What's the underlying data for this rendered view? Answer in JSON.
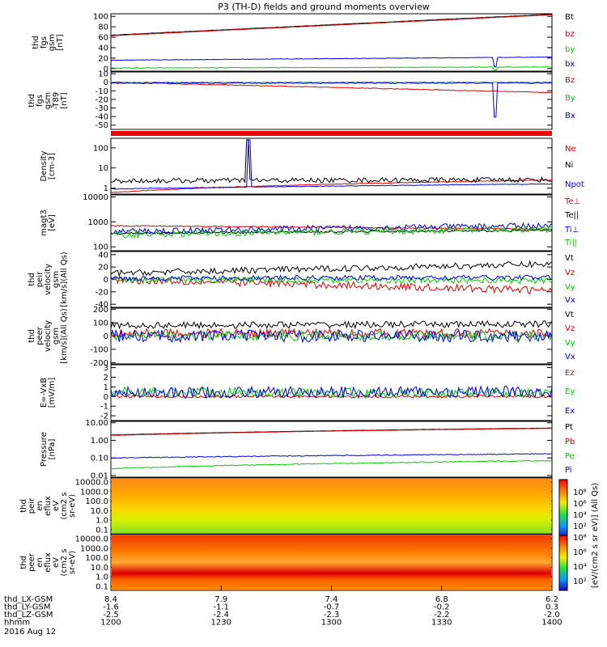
{
  "title": "P3 (TH-D) fields and ground moments overview",
  "date_label": "2016 Aug 12",
  "chart_data": [
    {
      "type": "line",
      "ylabel": [
        "thd",
        "fgs",
        "gsm",
        "[nT]"
      ],
      "yticks": [
        "100",
        "80",
        "60",
        "40",
        "20",
        "0"
      ],
      "ylim": [
        -5,
        105
      ],
      "log": false,
      "series": [
        {
          "name": "Bt",
          "color": "#000000",
          "start": 64,
          "end": 104,
          "noise": 0.3
        },
        {
          "name": "bz",
          "color": "#dd0000",
          "start": 63,
          "end": 103,
          "noise": 0.3
        },
        {
          "name": "by",
          "color": "#00cc00",
          "start": 1,
          "end": 3,
          "noise": 0.5,
          "spike": {
            "at": 0.872,
            "depth": -6
          }
        },
        {
          "name": "bx",
          "color": "#0000dd",
          "start": 16,
          "end": 22,
          "noise": 0.4,
          "spike": {
            "at": 0.872,
            "depth": -18
          }
        }
      ]
    },
    {
      "type": "line",
      "ylabel": [
        "thd",
        "fgs",
        "gsm",
        "-T89",
        "[nT]"
      ],
      "yticks": [
        "10",
        "0",
        "-10",
        "-20",
        "-30",
        "-40",
        "-50"
      ],
      "ylim": [
        -55,
        12
      ],
      "log": false,
      "series": [
        {
          "name": "Bz",
          "color": "#dd0000",
          "start": 0,
          "end": -12,
          "noise": 0.4
        },
        {
          "name": "By",
          "color": "#00cc00",
          "start": 0,
          "end": 0,
          "noise": 0.5
        },
        {
          "name": "Bx",
          "color": "#0000dd",
          "start": -1,
          "end": -1,
          "noise": 0.6,
          "spike": {
            "at": 0.872,
            "depth": -40
          }
        }
      ]
    },
    {
      "type": "line",
      "ylabel": [
        "Density",
        "[cm-3]"
      ],
      "yticks": [
        "100",
        "10",
        "1"
      ],
      "ylim": [
        0.5,
        300
      ],
      "log": true,
      "series": [
        {
          "name": "Ne",
          "color": "#dd0000",
          "start": 0.6,
          "end": 2.5,
          "noise": 0.03
        },
        {
          "name": "Ni",
          "color": "#000000",
          "start": 2.3,
          "end": 2.6,
          "noise": 0.25,
          "spike": {
            "at": 0.31,
            "depth": 250
          }
        },
        {
          "name": "Npot",
          "color": "#0000dd",
          "start": 0.9,
          "end": 1.6,
          "noise": 0.03,
          "spike": {
            "at": 0.315,
            "depth": 250
          }
        }
      ]
    },
    {
      "type": "line",
      "ylabel": [
        "magt3",
        "[eV]"
      ],
      "yticks": [
        "10000",
        "1000",
        "100"
      ],
      "ylim": [
        70,
        12000
      ],
      "log": true,
      "series": [
        {
          "name": "Te⊥",
          "color": "#dd0000",
          "start": 700,
          "end": 500,
          "noise": 0.05
        },
        {
          "name": "Te||",
          "color": "#000000",
          "start": 350,
          "end": 450,
          "noise": 0.08
        },
        {
          "name": "Ti⊥",
          "color": "#0000dd",
          "start": 400,
          "end": 700,
          "noise": 0.25
        },
        {
          "name": "Ti||",
          "color": "#00cc00",
          "start": 300,
          "end": 500,
          "noise": 0.25
        }
      ]
    },
    {
      "type": "line",
      "ylabel": [
        "thd",
        "peir",
        "velocity",
        "gsm",
        "[km/s](All Qs)"
      ],
      "yticks": [
        "40",
        "20",
        "0",
        "-20",
        "-40"
      ],
      "ylim": [
        -45,
        45
      ],
      "log": false,
      "series": [
        {
          "name": "Vt",
          "color": "#000000",
          "start": 10,
          "end": 25,
          "noise": 5
        },
        {
          "name": "Vz",
          "color": "#dd0000",
          "start": 0,
          "end": -18,
          "noise": 6
        },
        {
          "name": "Vy",
          "color": "#00cc00",
          "start": 0,
          "end": -2,
          "noise": 5
        },
        {
          "name": "Vx",
          "color": "#0000dd",
          "start": 2,
          "end": 3,
          "noise": 4
        }
      ]
    },
    {
      "type": "line",
      "ylabel": [
        "thd",
        "peer",
        "velocity",
        "gsm",
        "[km/s](All Qs)"
      ],
      "yticks": [
        "200",
        "100",
        "0",
        "-100",
        "-200"
      ],
      "ylim": [
        -210,
        210
      ],
      "log": false,
      "series": [
        {
          "name": "Vt",
          "color": "#000000",
          "start": 80,
          "end": 90,
          "noise": 25
        },
        {
          "name": "Vz",
          "color": "#dd0000",
          "start": 20,
          "end": 20,
          "noise": 35
        },
        {
          "name": "Vy",
          "color": "#00cc00",
          "start": 0,
          "end": 0,
          "noise": 35
        },
        {
          "name": "Vx",
          "color": "#0000dd",
          "start": 0,
          "end": 0,
          "noise": 45
        }
      ]
    },
    {
      "type": "line",
      "ylabel": [
        "E=-VxB",
        "[mV/m]"
      ],
      "yticks": [
        "3",
        "2",
        "1",
        "0",
        "-1",
        "-2"
      ],
      "ylim": [
        -2.5,
        3.3
      ],
      "log": false,
      "series": [
        {
          "name": "Ez",
          "color": "#dd0000",
          "start": 0,
          "end": 0,
          "noise": 0.15
        },
        {
          "name": "Ey",
          "color": "#00cc00",
          "start": 0.5,
          "end": 0.3,
          "noise": 0.5
        },
        {
          "name": "Ex",
          "color": "#0000dd",
          "start": 0.4,
          "end": 0.5,
          "noise": 0.6
        }
      ]
    },
    {
      "type": "line",
      "ylabel": [
        "Pressure",
        "[nPa]"
      ],
      "yticks": [
        "10.00",
        "1.00",
        "0.10",
        "0.01"
      ],
      "ylim": [
        0.008,
        12
      ],
      "log": true,
      "series": [
        {
          "name": "Pt",
          "color": "#000000",
          "start": 2.0,
          "end": 5.0,
          "noise": 0.01
        },
        {
          "name": "Pb",
          "color": "#dd0000",
          "start": 1.9,
          "end": 4.8,
          "noise": 0.01
        },
        {
          "name": "Pe",
          "color": "#00cc00",
          "start": 0.025,
          "end": 0.07,
          "noise": 0.05
        },
        {
          "name": "Pi",
          "color": "#0000dd",
          "start": 0.1,
          "end": 0.17,
          "noise": 0.05
        }
      ]
    },
    {
      "type": "heatmap",
      "ylabel": [
        "thd",
        "peir",
        "en",
        "eflux",
        "eV",
        "(cm2 s",
        "sr-eV)"
      ],
      "yticks": [
        "10000.0",
        "1000.0",
        "100.0",
        "10.0",
        "1.0",
        "0.1"
      ]
    },
    {
      "type": "heatmap",
      "ylabel": [
        "thd",
        "peer",
        "en",
        "eflux",
        "eV",
        "(cm2 s",
        "sr-eV)"
      ],
      "yticks": [
        "10000.0",
        "1000.0",
        "100.0",
        "10.0",
        "1.0",
        "0.1"
      ]
    }
  ],
  "colorbar": {
    "label": "[eV/(cm2 s sr eV)] (All Qs)",
    "ticks_top": [
      "10⁸",
      "10⁶",
      "10⁴",
      "10²"
    ],
    "ticks_bottom": [
      "10⁸",
      "10⁶",
      "10⁴",
      "10²"
    ]
  },
  "x_axis": {
    "rows": [
      {
        "name": "thd_LX-GSM",
        "values": [
          "8.4",
          "7.9",
          "7.4",
          "6.8",
          "6.2"
        ]
      },
      {
        "name": "thd_LY-GSM",
        "values": [
          "-1.6",
          "-1.1",
          "-0.7",
          "-0.2",
          "0.3"
        ]
      },
      {
        "name": "thd_LZ-GSM",
        "values": [
          "-2.5",
          "-2.4",
          "-2.3",
          "-2.2",
          "-2.0"
        ]
      },
      {
        "name": "hhmm",
        "values": [
          "1200",
          "1230",
          "1300",
          "1330",
          "1400"
        ]
      }
    ]
  }
}
